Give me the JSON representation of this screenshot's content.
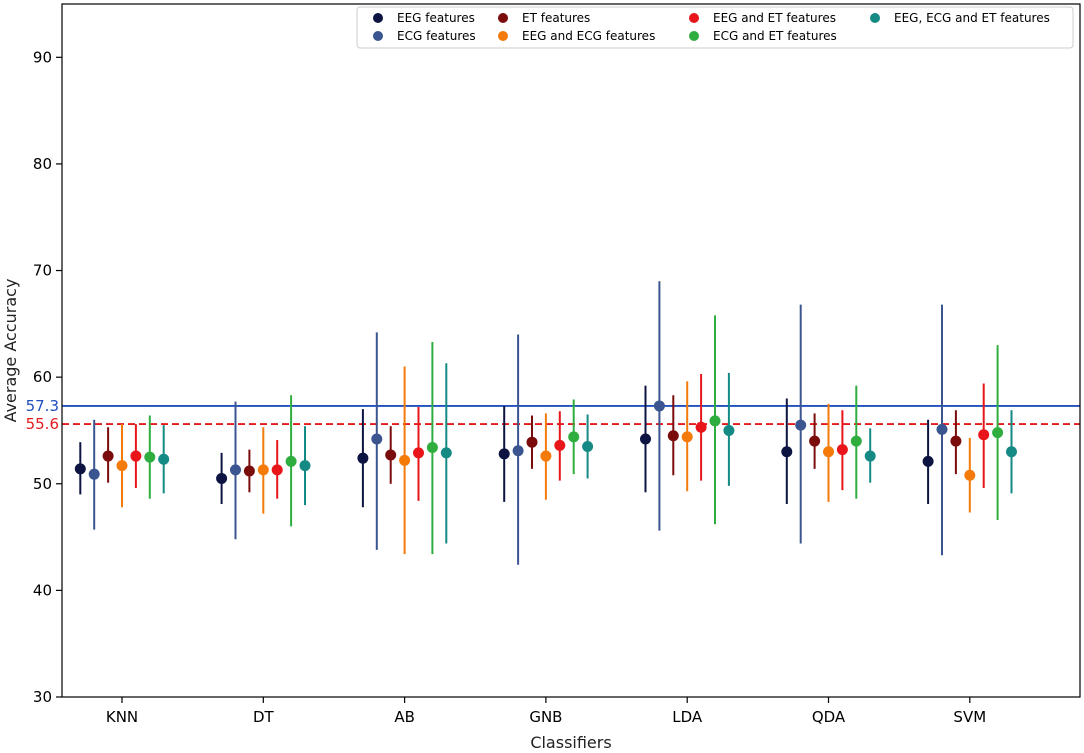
{
  "chart_data": {
    "type": "scatter",
    "title": "",
    "xlabel": "Classifiers",
    "ylabel": "Average Accuracy",
    "ylim": [
      30,
      95
    ],
    "yticks": [
      30,
      40,
      50,
      60,
      70,
      80,
      90
    ],
    "categories": [
      "KNN",
      "DT",
      "AB",
      "GNB",
      "LDA",
      "QDA",
      "SVM"
    ],
    "reference_lines": [
      {
        "value": 57.3,
        "label": "57.3",
        "color": "#1f4fbf",
        "style": "solid"
      },
      {
        "value": 55.6,
        "label": "55.6",
        "color": "#e31a1c",
        "style": "dashed"
      }
    ],
    "series": [
      {
        "name": "EEG features",
        "color": "#0d1442",
        "mean": [
          51.4,
          50.5,
          52.4,
          52.8,
          54.2,
          53.0,
          52.1
        ],
        "low": [
          49.0,
          48.1,
          47.8,
          48.3,
          49.2,
          48.1,
          48.1
        ],
        "high": [
          53.9,
          52.9,
          57.0,
          57.3,
          59.2,
          58.0,
          56.0
        ]
      },
      {
        "name": "ECG features",
        "color": "#3a5590",
        "mean": [
          50.9,
          51.3,
          54.2,
          53.1,
          57.3,
          55.5,
          55.1
        ],
        "low": [
          45.7,
          44.8,
          43.8,
          42.4,
          45.6,
          44.4,
          43.3
        ],
        "high": [
          56.0,
          57.7,
          64.2,
          64.0,
          69.0,
          66.8,
          66.8
        ]
      },
      {
        "name": "ET features",
        "color": "#7a0c0c",
        "mean": [
          52.6,
          51.2,
          52.7,
          53.9,
          54.5,
          54.0,
          54.0
        ],
        "low": [
          50.1,
          49.2,
          50.0,
          51.4,
          50.8,
          51.4,
          50.9
        ],
        "high": [
          55.3,
          53.2,
          55.4,
          56.4,
          58.3,
          56.6,
          56.9
        ]
      },
      {
        "name": "EEG and ECG features",
        "color": "#f47a0a",
        "mean": [
          51.7,
          51.3,
          52.2,
          52.6,
          54.4,
          53.0,
          50.8
        ],
        "low": [
          47.8,
          47.2,
          43.4,
          48.5,
          49.3,
          48.3,
          47.3
        ],
        "high": [
          55.6,
          55.3,
          61.0,
          56.6,
          59.6,
          57.5,
          54.3
        ]
      },
      {
        "name": "EEG and ET features",
        "color": "#e8161b",
        "mean": [
          52.6,
          51.3,
          52.9,
          53.6,
          55.3,
          53.2,
          54.6
        ],
        "low": [
          49.6,
          48.6,
          48.4,
          50.3,
          50.3,
          49.4,
          49.6
        ],
        "high": [
          55.6,
          54.1,
          57.2,
          56.8,
          60.3,
          56.9,
          59.4
        ]
      },
      {
        "name": "ECG and ET features",
        "color": "#2fae3f",
        "mean": [
          52.5,
          52.1,
          53.4,
          54.4,
          55.9,
          54.0,
          54.8
        ],
        "low": [
          48.6,
          46.0,
          43.4,
          50.9,
          46.2,
          48.6,
          46.6
        ],
        "high": [
          56.4,
          58.3,
          63.3,
          57.9,
          65.8,
          59.2,
          63.0
        ]
      },
      {
        "name": "EEG, ECG and ET features",
        "color": "#158a85",
        "mean": [
          52.3,
          51.7,
          52.9,
          53.5,
          55.0,
          52.6,
          53.0
        ],
        "low": [
          49.1,
          48.0,
          44.4,
          50.5,
          49.8,
          50.1,
          49.1
        ],
        "high": [
          55.5,
          55.4,
          61.3,
          56.5,
          60.4,
          55.2,
          56.9
        ]
      }
    ],
    "legend_position": "top-right",
    "grid": false
  }
}
